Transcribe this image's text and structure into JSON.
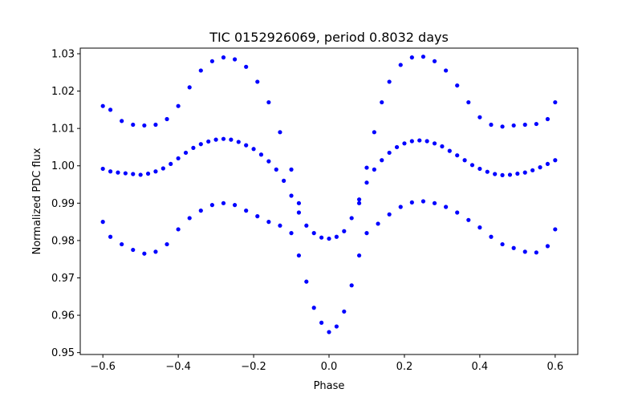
{
  "chart_data": {
    "type": "scatter",
    "title": "TIC 0152926069, period 0.8032 days",
    "xlabel": "Phase",
    "ylabel": "Normalized PDC flux",
    "xlim": [
      -0.66,
      0.66
    ],
    "ylim": [
      0.9495,
      1.0315
    ],
    "xticks": [
      -0.6,
      -0.4,
      -0.2,
      0.0,
      0.2,
      0.4,
      0.6
    ],
    "xtick_labels": [
      "−0.6",
      "−0.4",
      "−0.2",
      "0.0",
      "0.2",
      "0.4",
      "0.6"
    ],
    "yticks": [
      0.95,
      0.96,
      0.97,
      0.98,
      0.99,
      1.0,
      1.01,
      1.02,
      1.03
    ],
    "ytick_labels": [
      "0.95",
      "0.96",
      "0.97",
      "0.98",
      "0.99",
      "1.00",
      "1.01",
      "1.02",
      "1.03"
    ],
    "grid": false,
    "marker_color": "#0000ff",
    "series": [
      {
        "points": [
          [
            -0.6,
            0.9992
          ],
          [
            -0.58,
            0.9985
          ],
          [
            -0.56,
            0.9982
          ],
          [
            -0.54,
            0.998
          ],
          [
            -0.52,
            0.9978
          ],
          [
            -0.5,
            0.9976
          ],
          [
            -0.48,
            0.9979
          ],
          [
            -0.46,
            0.9985
          ],
          [
            -0.44,
            0.9993
          ],
          [
            -0.42,
            1.0005
          ],
          [
            -0.4,
            1.002
          ],
          [
            -0.38,
            1.0035
          ],
          [
            -0.36,
            1.0048
          ],
          [
            -0.34,
            1.0058
          ],
          [
            -0.32,
            1.0065
          ],
          [
            -0.3,
            1.007
          ],
          [
            -0.28,
            1.0072
          ],
          [
            -0.26,
            1.007
          ],
          [
            -0.24,
            1.0064
          ],
          [
            -0.22,
            1.0055
          ],
          [
            -0.2,
            1.0045
          ],
          [
            -0.18,
            1.003
          ],
          [
            -0.16,
            1.0012
          ],
          [
            -0.14,
            0.999
          ],
          [
            -0.12,
            0.996
          ],
          [
            -0.1,
            0.992
          ],
          [
            -0.08,
            0.9875
          ],
          [
            -0.06,
            0.984
          ],
          [
            -0.04,
            0.982
          ],
          [
            -0.02,
            0.9808
          ],
          [
            0.0,
            0.9805
          ],
          [
            0.02,
            0.981
          ],
          [
            0.04,
            0.9825
          ],
          [
            0.06,
            0.986
          ],
          [
            0.08,
            0.991
          ],
          [
            0.1,
            0.9955
          ],
          [
            0.12,
            0.999
          ],
          [
            0.14,
            1.0015
          ],
          [
            0.16,
            1.0035
          ],
          [
            0.18,
            1.005
          ],
          [
            0.2,
            1.006
          ],
          [
            0.22,
            1.0066
          ],
          [
            0.24,
            1.0068
          ],
          [
            0.26,
            1.0066
          ],
          [
            0.28,
            1.006
          ],
          [
            0.3,
            1.0052
          ],
          [
            0.32,
            1.004
          ],
          [
            0.34,
            1.0028
          ],
          [
            0.36,
            1.0015
          ],
          [
            0.38,
            1.0002
          ],
          [
            0.4,
            0.9992
          ],
          [
            0.42,
            0.9984
          ],
          [
            0.44,
            0.9978
          ],
          [
            0.46,
            0.9975
          ],
          [
            0.48,
            0.9976
          ],
          [
            0.5,
            0.9979
          ],
          [
            0.52,
            0.9982
          ],
          [
            0.54,
            0.9988
          ],
          [
            0.56,
            0.9996
          ],
          [
            0.58,
            1.0005
          ],
          [
            0.6,
            1.0015
          ],
          [
            -0.6,
            1.016
          ],
          [
            -0.58,
            1.015
          ],
          [
            -0.55,
            1.012
          ],
          [
            -0.52,
            1.011
          ],
          [
            -0.49,
            1.0108
          ],
          [
            -0.46,
            1.011
          ],
          [
            -0.43,
            1.0125
          ],
          [
            -0.4,
            1.016
          ],
          [
            -0.37,
            1.021
          ],
          [
            -0.34,
            1.0255
          ],
          [
            -0.31,
            1.028
          ],
          [
            -0.28,
            1.029
          ],
          [
            -0.25,
            1.0285
          ],
          [
            -0.22,
            1.0265
          ],
          [
            -0.19,
            1.0225
          ],
          [
            -0.16,
            1.017
          ],
          [
            -0.13,
            1.009
          ],
          [
            -0.1,
            0.999
          ],
          [
            -0.08,
            0.99
          ],
          [
            0.08,
            0.99
          ],
          [
            0.1,
            0.9995
          ],
          [
            0.12,
            1.009
          ],
          [
            0.14,
            1.017
          ],
          [
            0.16,
            1.0225
          ],
          [
            0.19,
            1.027
          ],
          [
            0.22,
            1.029
          ],
          [
            0.25,
            1.0292
          ],
          [
            0.28,
            1.028
          ],
          [
            0.31,
            1.0255
          ],
          [
            0.34,
            1.0215
          ],
          [
            0.37,
            1.017
          ],
          [
            0.4,
            1.013
          ],
          [
            0.43,
            1.011
          ],
          [
            0.46,
            1.0105
          ],
          [
            0.49,
            1.0108
          ],
          [
            0.52,
            1.011
          ],
          [
            0.55,
            1.0112
          ],
          [
            0.58,
            1.0125
          ],
          [
            0.6,
            1.017
          ],
          [
            -0.6,
            0.985
          ],
          [
            -0.58,
            0.981
          ],
          [
            -0.55,
            0.979
          ],
          [
            -0.52,
            0.9775
          ],
          [
            -0.49,
            0.9765
          ],
          [
            -0.46,
            0.977
          ],
          [
            -0.43,
            0.979
          ],
          [
            -0.4,
            0.983
          ],
          [
            -0.37,
            0.986
          ],
          [
            -0.34,
            0.988
          ],
          [
            -0.31,
            0.9895
          ],
          [
            -0.28,
            0.99
          ],
          [
            -0.25,
            0.9895
          ],
          [
            -0.22,
            0.988
          ],
          [
            -0.19,
            0.9865
          ],
          [
            -0.16,
            0.985
          ],
          [
            -0.13,
            0.984
          ],
          [
            -0.1,
            0.982
          ],
          [
            -0.08,
            0.976
          ],
          [
            -0.06,
            0.969
          ],
          [
            -0.04,
            0.962
          ],
          [
            -0.02,
            0.958
          ],
          [
            0.0,
            0.9555
          ],
          [
            0.02,
            0.957
          ],
          [
            0.04,
            0.961
          ],
          [
            0.06,
            0.968
          ],
          [
            0.08,
            0.976
          ],
          [
            0.1,
            0.982
          ],
          [
            0.13,
            0.9845
          ],
          [
            0.16,
            0.987
          ],
          [
            0.19,
            0.989
          ],
          [
            0.22,
            0.9902
          ],
          [
            0.25,
            0.9905
          ],
          [
            0.28,
            0.99
          ],
          [
            0.31,
            0.989
          ],
          [
            0.34,
            0.9875
          ],
          [
            0.37,
            0.9855
          ],
          [
            0.4,
            0.9835
          ],
          [
            0.43,
            0.981
          ],
          [
            0.46,
            0.979
          ],
          [
            0.49,
            0.978
          ],
          [
            0.52,
            0.977
          ],
          [
            0.55,
            0.9768
          ],
          [
            0.58,
            0.9785
          ],
          [
            0.6,
            0.983
          ]
        ]
      }
    ]
  }
}
